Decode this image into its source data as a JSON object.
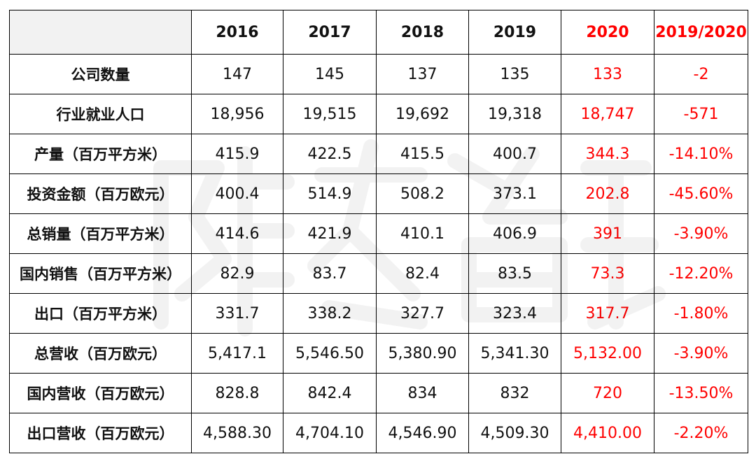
{
  "table": {
    "headers": [
      "",
      "2016",
      "2017",
      "2018",
      "2019",
      "2020",
      "2019/2020"
    ],
    "rows": [
      {
        "label": "公司数量",
        "values": [
          "147",
          "145",
          "137",
          "135",
          "133",
          "-2"
        ]
      },
      {
        "label": "行业就业人口",
        "values": [
          "18,956",
          "19,515",
          "19,692",
          "19,318",
          "18,747",
          "-571"
        ]
      },
      {
        "label": "产量（百万平方米）",
        "values": [
          "415.9",
          "422.5",
          "415.5",
          "400.7",
          "344.3",
          "-14.10%"
        ]
      },
      {
        "label": "投资金额（百万欧元）",
        "values": [
          "400.4",
          "514.9",
          "508.2",
          "373.1",
          "202.8",
          "-45.60%"
        ]
      },
      {
        "label": "总销量（百万平方米）",
        "values": [
          "414.6",
          "421.9",
          "410.1",
          "406.9",
          "391",
          "-3.90%"
        ]
      },
      {
        "label": "国内销售（百万平方米）",
        "values": [
          "82.9",
          "83.7",
          "82.4",
          "83.5",
          "73.3",
          "-12.20%"
        ]
      },
      {
        "label": "出口（百万平方米）",
        "values": [
          "331.7",
          "338.2",
          "327.7",
          "323.4",
          "317.7",
          "-1.80%"
        ]
      },
      {
        "label": "总营收（百万欧元）",
        "values": [
          "5,417.1",
          "5,546.50",
          "5,380.90",
          "5,341.30",
          "5,132.00",
          "-3.90%"
        ]
      },
      {
        "label": "国内营收（百万欧元）",
        "values": [
          "828.8",
          "842.4",
          "834",
          "832",
          "720",
          "-13.50%"
        ]
      },
      {
        "label": "出口营收（百万欧元）",
        "values": [
          "4,588.30",
          "4,704.10",
          "4,546.90",
          "4,509.30",
          "4,410.00",
          "-2.20%"
        ]
      }
    ]
  },
  "colors": {
    "text": "#111111",
    "highlight": "#ff0000",
    "header_bg": "#f2f2f2",
    "border": "#000000"
  }
}
